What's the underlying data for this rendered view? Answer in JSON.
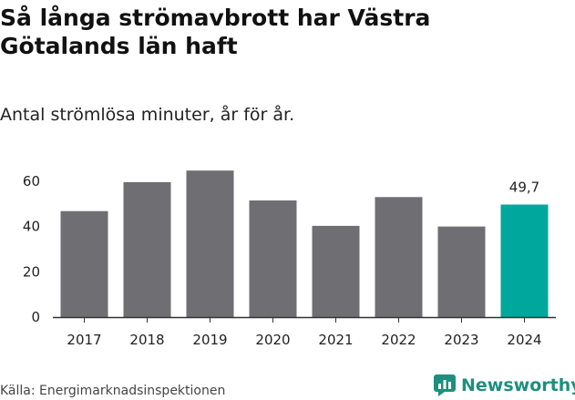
{
  "chart_data": {
    "type": "bar",
    "title": "Så långa strömavbrott har Västra Götalands län haft",
    "subtitle": "Antal strömlösa minuter, år för år.",
    "categories": [
      "2017",
      "2018",
      "2019",
      "2020",
      "2021",
      "2022",
      "2023",
      "2024"
    ],
    "values": [
      46.8,
      59.6,
      64.7,
      51.5,
      40.3,
      53.0,
      40.0,
      49.7
    ],
    "highlight_index": 7,
    "data_labels": [
      {
        "index": 7,
        "text": "49,7"
      }
    ],
    "yticks": [
      "0",
      "20",
      "40",
      "60"
    ],
    "ylim": [
      0,
      70
    ],
    "xlabel": "",
    "ylabel": "",
    "colors": {
      "bar": "#6f6e73",
      "highlight": "#00a79d",
      "axis": "#333333"
    }
  },
  "footer": {
    "source": "Källa: Energimarknadsinspektionen",
    "brand": "Newsworthy",
    "brand_icon": "newsworthy-logo-icon"
  }
}
